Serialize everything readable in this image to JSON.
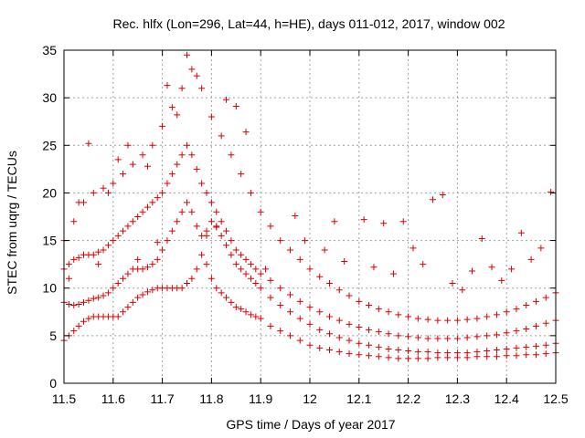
{
  "chart_data": {
    "type": "scatter",
    "title": "Rec. hlfx (Lon=296, Lat=44, h=HE), days 011-012, 2017, window 002",
    "xlabel": "GPS time / Days of year 2017",
    "ylabel": "STEC from uqrg / TECUs",
    "xlim": [
      11.5,
      12.5
    ],
    "ylim": [
      0,
      35
    ],
    "xticks": [
      "11.5",
      "11.6",
      "11.7",
      "11.8",
      "11.9",
      "12",
      "12.1",
      "12.2",
      "12.3",
      "12.4",
      "12.5"
    ],
    "yticks": [
      "0",
      "5",
      "10",
      "15",
      "20",
      "25",
      "30",
      "35"
    ],
    "grid": true,
    "marker": "+",
    "colors": {
      "points": "#dd0000",
      "grid": "#a0a0a0",
      "axis": "#000000"
    },
    "series": [
      {
        "x": [
          11.5,
          11.51,
          11.52,
          11.53,
          11.54,
          11.55,
          11.56,
          11.57,
          11.58,
          11.59,
          11.6,
          11.61,
          11.62,
          11.63,
          11.64,
          11.65,
          11.66,
          11.67,
          11.68,
          11.69,
          11.7,
          11.71,
          11.72,
          11.73,
          11.74,
          11.75,
          11.76,
          11.77,
          11.78,
          11.79,
          11.8,
          11.81,
          11.82,
          11.83,
          11.84,
          11.85,
          11.86,
          11.87,
          11.88,
          11.89,
          11.9,
          11.92,
          11.94,
          11.96,
          11.98,
          12.0,
          12.02,
          12.04,
          12.06,
          12.08,
          12.1,
          12.12,
          12.14,
          12.16,
          12.18,
          12.2,
          12.22,
          12.24,
          12.26,
          12.28,
          12.3,
          12.32,
          12.34,
          12.36,
          12.38,
          12.4,
          12.42,
          12.44,
          12.46,
          12.48,
          12.5
        ],
        "y": [
          4.5,
          5.0,
          5.5,
          6.0,
          6.5,
          6.8,
          7.0,
          7.0,
          7.0,
          7.0,
          7.0,
          7.0,
          7.5,
          8.0,
          8.5,
          9.0,
          9.3,
          9.6,
          9.8,
          10.0,
          10.0,
          10.0,
          10.0,
          10.0,
          10.0,
          10.5,
          11.0,
          12.0,
          13.5,
          12.5,
          11.0,
          10.0,
          9.5,
          9.0,
          8.5,
          8.0,
          7.8,
          7.5,
          7.2,
          7.0,
          6.8,
          6.0,
          5.5,
          5.0,
          4.5,
          4.0,
          3.7,
          3.5,
          3.3,
          3.1,
          3.0,
          2.9,
          2.8,
          2.7,
          2.6,
          2.6,
          2.6,
          2.6,
          2.7,
          2.7,
          2.7,
          2.7,
          2.8,
          2.8,
          2.8,
          2.9,
          2.9,
          3.0,
          3.0,
          3.1,
          3.2
        ]
      },
      {
        "x": [
          11.5,
          11.51,
          11.52,
          11.53,
          11.54,
          11.55,
          11.56,
          11.57,
          11.58,
          11.59,
          11.6,
          11.61,
          11.62,
          11.63,
          11.64,
          11.65,
          11.66,
          11.67,
          11.68,
          11.69,
          11.7,
          11.71,
          11.72,
          11.73,
          11.74,
          11.75,
          11.76,
          11.77,
          11.78,
          11.79,
          11.8,
          11.81,
          11.82,
          11.83,
          11.84,
          11.85,
          11.86,
          11.87,
          11.88,
          11.89,
          11.9,
          11.92,
          11.94,
          11.96,
          11.98,
          12.0,
          12.02,
          12.04,
          12.06,
          12.08,
          12.1,
          12.12,
          12.14,
          12.16,
          12.18,
          12.2,
          12.22,
          12.24,
          12.26,
          12.28,
          12.3,
          12.32,
          12.34,
          12.36,
          12.38,
          12.4,
          12.42,
          12.44,
          12.46,
          12.48,
          12.5
        ],
        "y": [
          8.5,
          8.3,
          8.2,
          8.3,
          8.5,
          8.7,
          8.9,
          9.0,
          9.2,
          9.5,
          10.0,
          10.5,
          11.0,
          11.5,
          12.0,
          12.0,
          12.0,
          12.2,
          12.5,
          13.0,
          14.0,
          15.0,
          16.0,
          17.0,
          18.0,
          19.0,
          18.0,
          16.5,
          15.5,
          16.0,
          17.0,
          16.5,
          15.5,
          14.5,
          13.5,
          12.5,
          12.0,
          11.5,
          11.0,
          10.5,
          10.0,
          9.0,
          8.2,
          7.5,
          6.8,
          6.2,
          5.6,
          5.2,
          4.8,
          4.5,
          4.2,
          4.0,
          3.8,
          3.6,
          3.5,
          3.4,
          3.3,
          3.3,
          3.2,
          3.2,
          3.2,
          3.2,
          3.3,
          3.4,
          3.5,
          3.6,
          3.7,
          3.8,
          3.9,
          4.0,
          4.2
        ]
      },
      {
        "x": [
          11.5,
          11.51,
          11.52,
          11.53,
          11.54,
          11.55,
          11.56,
          11.57,
          11.58,
          11.59,
          11.6,
          11.61,
          11.62,
          11.63,
          11.64,
          11.65,
          11.66,
          11.67,
          11.68,
          11.69,
          11.7,
          11.71,
          11.72,
          11.73,
          11.74,
          11.75,
          11.76,
          11.77,
          11.78,
          11.79,
          11.8,
          11.81,
          11.82,
          11.83,
          11.84,
          11.85,
          11.86,
          11.87,
          11.88,
          11.89,
          11.9,
          11.92,
          11.94,
          11.96,
          11.98,
          12.0,
          12.02,
          12.04,
          12.06,
          12.08,
          12.1,
          12.12,
          12.14,
          12.16,
          12.18,
          12.2,
          12.22,
          12.24,
          12.26,
          12.28,
          12.3,
          12.32,
          12.34,
          12.36,
          12.38,
          12.4,
          12.42,
          12.44,
          12.46,
          12.48,
          12.5
        ],
        "y": [
          12.0,
          12.5,
          13.0,
          13.2,
          13.5,
          13.5,
          13.5,
          13.8,
          14.0,
          14.5,
          15.0,
          15.5,
          16.0,
          16.5,
          17.0,
          17.5,
          18.0,
          18.5,
          19.0,
          19.5,
          20.0,
          21.0,
          22.0,
          23.0,
          24.0,
          25.0,
          24.0,
          22.5,
          21.0,
          20.0,
          19.0,
          18.0,
          17.0,
          16.0,
          15.0,
          14.0,
          13.5,
          13.0,
          12.5,
          12.0,
          11.5,
          10.8,
          10.0,
          9.3,
          8.6,
          8.0,
          7.5,
          7.0,
          6.6,
          6.2,
          5.9,
          5.6,
          5.4,
          5.2,
          5.0,
          4.9,
          4.8,
          4.7,
          4.7,
          4.7,
          4.7,
          4.8,
          4.9,
          5.0,
          5.1,
          5.3,
          5.5,
          5.7,
          6.0,
          6.3,
          6.6
        ]
      },
      {
        "x": [
          11.5,
          11.52,
          11.54,
          11.56,
          11.58,
          11.6,
          11.62,
          11.64,
          11.66,
          11.68,
          11.7,
          11.72,
          11.74,
          11.76,
          11.78,
          11.8,
          11.82,
          11.84,
          11.86,
          11.88,
          11.9,
          11.92,
          11.94,
          11.96,
          11.98,
          12.0,
          12.02,
          12.04,
          12.06,
          12.08,
          12.1,
          12.12,
          12.14,
          12.16,
          12.18,
          12.2,
          12.22,
          12.24,
          12.26,
          12.28,
          12.3,
          12.32,
          12.34,
          12.36,
          12.38,
          12.4,
          12.42,
          12.44,
          12.46,
          12.48,
          12.5
        ],
        "y": [
          15.0,
          17.0,
          19.0,
          20.0,
          20.5,
          21.0,
          22.0,
          23.0,
          24.0,
          25.0,
          27.0,
          29.0,
          31.0,
          33.0,
          31.0,
          28.0,
          26.0,
          24.0,
          22.0,
          20.0,
          18.0,
          16.5,
          15.0,
          14.0,
          13.0,
          12.0,
          11.2,
          10.5,
          9.8,
          9.2,
          8.6,
          8.2,
          7.8,
          7.5,
          7.2,
          7.0,
          6.8,
          6.7,
          6.6,
          6.6,
          6.6,
          6.7,
          6.8,
          7.0,
          7.2,
          7.5,
          7.8,
          8.2,
          8.6,
          9.0,
          9.5
        ]
      },
      {
        "x": [
          11.53,
          11.55,
          11.59,
          11.61,
          11.63,
          11.67,
          11.71,
          11.73,
          11.75,
          11.77,
          11.83,
          11.85,
          11.87,
          11.97,
          12.05,
          12.11,
          12.15,
          12.19,
          12.25,
          12.27,
          12.35,
          12.43,
          12.47,
          12.49
        ],
        "y": [
          19.0,
          25.2,
          20.0,
          23.5,
          25.0,
          22.8,
          31.3,
          28.2,
          34.5,
          32.3,
          29.8,
          29.1,
          26.4,
          17.6,
          17.0,
          17.2,
          16.8,
          17.0,
          19.3,
          19.8,
          15.2,
          15.8,
          14.2,
          20.1
        ]
      },
      {
        "x": [
          11.51,
          11.57,
          11.65,
          11.69,
          11.79,
          11.81,
          11.91,
          11.99,
          12.03,
          12.07,
          12.13,
          12.17,
          12.21,
          12.23,
          12.29,
          12.31,
          12.33,
          12.37,
          12.39,
          12.41,
          12.45
        ],
        "y": [
          11.0,
          12.5,
          13.0,
          14.8,
          15.5,
          16.4,
          12.0,
          15.0,
          14.0,
          12.8,
          12.2,
          11.5,
          14.2,
          12.5,
          10.5,
          9.8,
          11.8,
          12.2,
          10.8,
          12.0,
          13.0
        ]
      }
    ]
  }
}
